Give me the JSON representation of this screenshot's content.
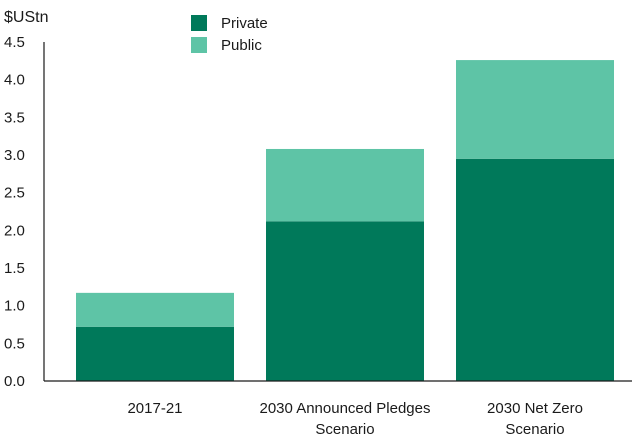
{
  "chart_data": {
    "type": "bar",
    "stacked": true,
    "unit_label": "$UStn",
    "categories": [
      [
        "2017-21"
      ],
      [
        "2030 Announced Pledges",
        "Scenario"
      ],
      [
        "2030 Net Zero",
        "Scenario"
      ]
    ],
    "series": [
      {
        "name": "Private",
        "color": "#00795A",
        "values": [
          0.72,
          2.12,
          2.95
        ]
      },
      {
        "name": "Public",
        "color": "#5EC4A6",
        "values": [
          0.45,
          0.96,
          1.31
        ]
      }
    ],
    "ylim": [
      0,
      4.5
    ],
    "yticks": [
      "0.0",
      "0.5",
      "1.0",
      "1.5",
      "2.0",
      "2.5",
      "3.0",
      "3.5",
      "4.0",
      "4.5"
    ],
    "legend_position": "top"
  }
}
